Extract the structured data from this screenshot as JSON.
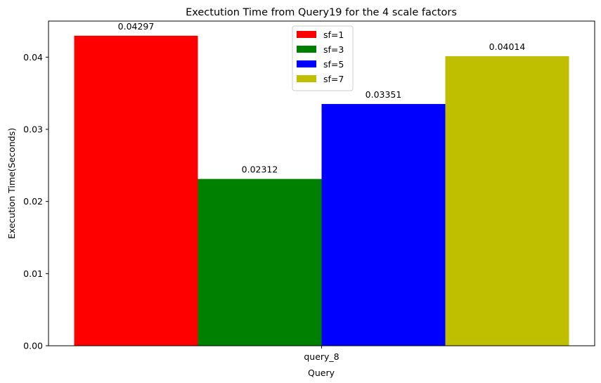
{
  "chart_data": {
    "type": "bar",
    "title": "Exectution Time from Query19 for the 4 scale factors",
    "xlabel": "Query",
    "ylabel": "Execution Time(Seconds)",
    "categories": [
      "query_8"
    ],
    "series": [
      {
        "name": "sf=1",
        "values": [
          0.04297
        ],
        "label": "0.04297",
        "color": "#ff0000"
      },
      {
        "name": "sf=3",
        "values": [
          0.02312
        ],
        "label": "0.02312",
        "color": "#008000"
      },
      {
        "name": "sf=5",
        "values": [
          0.03351
        ],
        "label": "0.03351",
        "color": "#0000ff"
      },
      {
        "name": "sf=7",
        "values": [
          0.04014
        ],
        "label": "0.04014",
        "color": "#bfbf00"
      }
    ],
    "ylim": [
      0,
      0.045
    ],
    "yticks": [
      0,
      0.01,
      0.02,
      0.03,
      0.04
    ],
    "ytick_labels": [
      "0.00",
      "0.01",
      "0.02",
      "0.03",
      "0.04"
    ],
    "grid": false,
    "legend_position": "top-center"
  }
}
